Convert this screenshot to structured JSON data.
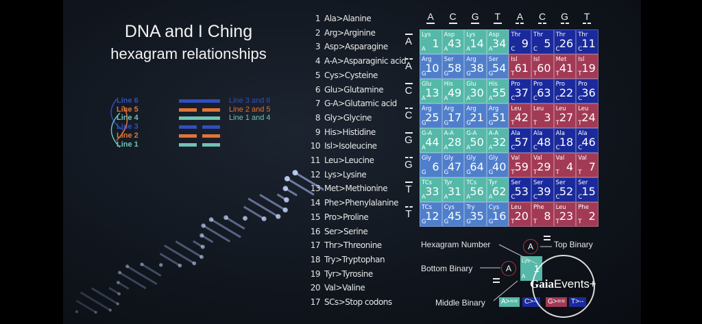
{
  "title": {
    "line1": "DNA and I Ching",
    "line2": "hexagram relationships"
  },
  "legend": {
    "lines": [
      {
        "label": "Line 6",
        "color": "#2f4fbf"
      },
      {
        "label": "Line 5",
        "color": "#e0743a"
      },
      {
        "label": "Line 4",
        "color": "#6fc3b8"
      },
      {
        "label": "Line 3",
        "color": "#2f4fbf"
      },
      {
        "label": "Line 2",
        "color": "#e0743a"
      },
      {
        "label": "Line 1",
        "color": "#6fc3b8"
      }
    ],
    "pairs": [
      {
        "label": "Line 3 and 6",
        "color": "#2f4fbf"
      },
      {
        "label": "Line 2 and 5",
        "color": "#e0743a"
      },
      {
        "label": "Line 1 and 4",
        "color": "#6fc3b8"
      }
    ]
  },
  "amino_acids": [
    [
      "1",
      "Ala>Alanine"
    ],
    [
      "2",
      "Arg>Arginine"
    ],
    [
      "3",
      "Asp>Asparagine"
    ],
    [
      "4",
      "A-A>Asparaginic acid"
    ],
    [
      "5",
      "Cys>Cysteine"
    ],
    [
      "6",
      "Glu>Glutamine"
    ],
    [
      "7",
      "G-A>Glutamic acid"
    ],
    [
      "8",
      "Gly>Glycine"
    ],
    [
      "9",
      "His>Histidine"
    ],
    [
      "10",
      "Isl>Isoleucine"
    ],
    [
      "11",
      "Leu>Leucine"
    ],
    [
      "12",
      "Lys>Lysine"
    ],
    [
      "13",
      "Met>Methionine"
    ],
    [
      "14",
      "Phe>Phenylalanine"
    ],
    [
      "15",
      "Pro>Proline"
    ],
    [
      "16",
      "Ser>Serine"
    ],
    [
      "17",
      "Thr>Threonine"
    ],
    [
      "18",
      "Try>Tryptophan"
    ],
    [
      "19",
      "Tyr>Tyrosine"
    ],
    [
      "20",
      "Val>Valine"
    ],
    [
      "17",
      "SCs>Stop codons"
    ]
  ],
  "grid": {
    "columns": [
      "A",
      "C",
      "G",
      "T",
      "A",
      "C",
      "G",
      "T"
    ],
    "rows": [
      "A",
      "A",
      "C",
      "C",
      "G",
      "G",
      "T",
      "T"
    ],
    "colors": {
      "teal": "#55b8a8",
      "blue": "#4f7fcb",
      "navy": "#1a2a9c",
      "red": "#a23a55"
    },
    "cells": [
      [
        [
          "Lys",
          "1",
          "A"
        ],
        [
          "Asp",
          "43",
          "A"
        ],
        [
          "Lys",
          "14",
          "A"
        ],
        [
          "Asp",
          "34",
          "A"
        ],
        [
          "Thr",
          "9",
          "C"
        ],
        [
          "Thr",
          "5",
          "C"
        ],
        [
          "Thr",
          "26",
          "C"
        ],
        [
          "Thr",
          "11",
          "C"
        ]
      ],
      [
        [
          "Arg",
          "10",
          "G"
        ],
        [
          "Ser",
          "58",
          "G"
        ],
        [
          "Arg",
          "38",
          "G"
        ],
        [
          "Ser",
          "54",
          "G"
        ],
        [
          "Isl",
          "61",
          "T"
        ],
        [
          "Isl",
          "60",
          "T"
        ],
        [
          "Met",
          "41",
          "T"
        ],
        [
          "Isl",
          "19",
          "T"
        ]
      ],
      [
        [
          "Glu",
          "13",
          "A"
        ],
        [
          "His",
          "49",
          "A"
        ],
        [
          "Glu",
          "30",
          "A"
        ],
        [
          "His",
          "55",
          "A"
        ],
        [
          "Pro",
          "37",
          "C"
        ],
        [
          "Pro",
          "63",
          "C"
        ],
        [
          "Pro",
          "22",
          "C"
        ],
        [
          "Pro",
          "36",
          "C"
        ]
      ],
      [
        [
          "Arg",
          "25",
          "G"
        ],
        [
          "Arg",
          "17",
          "G"
        ],
        [
          "Arg",
          "21",
          "G"
        ],
        [
          "Arg",
          "51",
          "G"
        ],
        [
          "Leu",
          "42",
          "T"
        ],
        [
          "Leu",
          "3",
          "T"
        ],
        [
          "Leu",
          "27",
          "T"
        ],
        [
          "Leu",
          "24",
          "T"
        ]
      ],
      [
        [
          "G-A",
          "44",
          "A"
        ],
        [
          "A-A",
          "28",
          "A"
        ],
        [
          "G-A",
          "50",
          "A"
        ],
        [
          "A-A",
          "32",
          "A"
        ],
        [
          "Ala",
          "57",
          "C"
        ],
        [
          "Ala",
          "48",
          "C"
        ],
        [
          "Ala",
          "18",
          "C"
        ],
        [
          "Ala",
          "46",
          "C"
        ]
      ],
      [
        [
          "Gly",
          "6",
          "G"
        ],
        [
          "Gly",
          "47",
          "G"
        ],
        [
          "Gly",
          "64",
          "G"
        ],
        [
          "Gly",
          "40",
          "G"
        ],
        [
          "Val",
          "59",
          "T"
        ],
        [
          "Val",
          "29",
          "T"
        ],
        [
          "Val",
          "4",
          "T"
        ],
        [
          "Val",
          "7",
          "T"
        ]
      ],
      [
        [
          "TCs",
          "33",
          "A"
        ],
        [
          "Tyr",
          "31",
          "A"
        ],
        [
          "TCs",
          "56",
          "A"
        ],
        [
          "Tyr",
          "62",
          "A"
        ],
        [
          "Ser",
          "53",
          "C"
        ],
        [
          "Ser",
          "39",
          "C"
        ],
        [
          "Ser",
          "52",
          "C"
        ],
        [
          "Ser",
          "15",
          "C"
        ]
      ],
      [
        [
          "TCs",
          "12",
          "G"
        ],
        [
          "Cys",
          "45",
          "G"
        ],
        [
          "Try",
          "35",
          "G"
        ],
        [
          "Cys",
          "16",
          "G"
        ],
        [
          "Leu",
          "20",
          "T"
        ],
        [
          "Phe",
          "8",
          "T"
        ],
        [
          "Leu",
          "23",
          "T"
        ],
        [
          "Phe",
          "2",
          "T"
        ]
      ]
    ]
  },
  "key": {
    "hexagram_number": "Hexagram Number",
    "top_binary": "Top Binary",
    "bottom_binary": "Bottom Binary",
    "middle_binary": "Middle Binary",
    "top_letter": "A",
    "bottom_letter": "A",
    "cell_aa": "Lys",
    "cell_num": "1",
    "cell_codon": "A",
    "middle": [
      {
        "label": "A>==",
        "color": "#55b8a8"
      },
      {
        "label": "C>--",
        "color": "#1a2a9c"
      },
      {
        "label": "G>==",
        "color": "#a23a55"
      },
      {
        "label": "T>--",
        "color": "#1a2a9c"
      }
    ]
  },
  "watermark": {
    "brand": "Gaia",
    "suffix": "Events+"
  }
}
